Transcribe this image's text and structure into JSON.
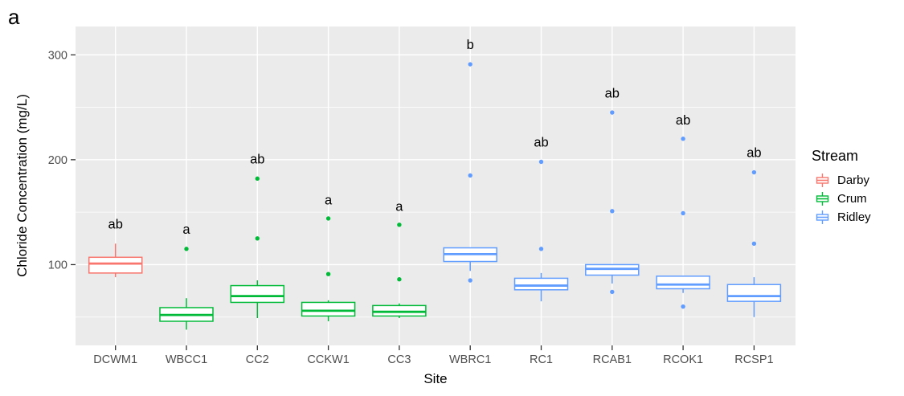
{
  "panel_label": "a",
  "chart_data": {
    "type": "boxplot",
    "title": "",
    "xlabel": "Site",
    "ylabel": "Chloride Concentration (mg/L)",
    "ylim": [
      23,
      327
    ],
    "yticks_major": [
      100,
      200,
      300
    ],
    "yticks_minor": [
      50,
      150,
      250
    ],
    "grid": "white major+minor horizontal, white vertical at each site, on gray panel",
    "legend_position": "right",
    "sites": [
      {
        "name": "DCWM1",
        "stream": "Darby",
        "sig": "ab",
        "sig_y": 139,
        "whisker_low": 88,
        "q1": 92,
        "median": 101,
        "q3": 107,
        "whisker_high": 120,
        "outliers": []
      },
      {
        "name": "WBCC1",
        "stream": "Crum",
        "sig": "a",
        "sig_y": 134,
        "whisker_low": 38,
        "q1": 46,
        "median": 52,
        "q3": 59,
        "whisker_high": 68,
        "outliers": [
          115
        ]
      },
      {
        "name": "CC2",
        "stream": "Crum",
        "sig": "ab",
        "sig_y": 201,
        "whisker_low": 49,
        "q1": 64,
        "median": 70,
        "q3": 80,
        "whisker_high": 85,
        "outliers": [
          125,
          182
        ]
      },
      {
        "name": "CCKW1",
        "stream": "Crum",
        "sig": "a",
        "sig_y": 162,
        "whisker_low": 46,
        "q1": 51,
        "median": 56,
        "q3": 64,
        "whisker_high": 66,
        "outliers": [
          91,
          144
        ]
      },
      {
        "name": "CC3",
        "stream": "Crum",
        "sig": "a",
        "sig_y": 156,
        "whisker_low": 49,
        "q1": 51,
        "median": 55,
        "q3": 61,
        "whisker_high": 63,
        "outliers": [
          86,
          138
        ]
      },
      {
        "name": "WBRC1",
        "stream": "Ridley",
        "sig": "b",
        "sig_y": 310,
        "whisker_low": 94,
        "q1": 103,
        "median": 110,
        "q3": 116,
        "whisker_high": 116,
        "outliers": [
          85,
          185,
          291
        ]
      },
      {
        "name": "RC1",
        "stream": "Ridley",
        "sig": "ab",
        "sig_y": 217,
        "whisker_low": 65,
        "q1": 76,
        "median": 80,
        "q3": 87,
        "whisker_high": 92,
        "outliers": [
          115,
          198
        ]
      },
      {
        "name": "RCAB1",
        "stream": "Ridley",
        "sig": "ab",
        "sig_y": 264,
        "whisker_low": 82,
        "q1": 90,
        "median": 96,
        "q3": 100,
        "whisker_high": 100,
        "outliers": [
          74,
          151,
          245
        ]
      },
      {
        "name": "RCOK1",
        "stream": "Ridley",
        "sig": "ab",
        "sig_y": 238,
        "whisker_low": 73,
        "q1": 77,
        "median": 81,
        "q3": 89,
        "whisker_high": 89,
        "outliers": [
          60,
          149,
          220
        ]
      },
      {
        "name": "RCSP1",
        "stream": "Ridley",
        "sig": "ab",
        "sig_y": 207,
        "whisker_low": 50,
        "q1": 65,
        "median": 70,
        "q3": 81,
        "whisker_high": 88,
        "outliers": [
          120,
          188
        ]
      }
    ]
  },
  "legend": {
    "title": "Stream",
    "entries": [
      {
        "label": "Darby",
        "color": "#F8766D"
      },
      {
        "label": "Crum",
        "color": "#00BA38"
      },
      {
        "label": "Ridley",
        "color": "#619CFF"
      }
    ]
  },
  "colors": {
    "panel_bg": "#EBEBEB",
    "grid": "#FFFFFF",
    "tick_text": "#4D4D4D",
    "tick_mark": "#333333",
    "box_fill": "#FFFFFF",
    "sig_text": "#000000"
  }
}
